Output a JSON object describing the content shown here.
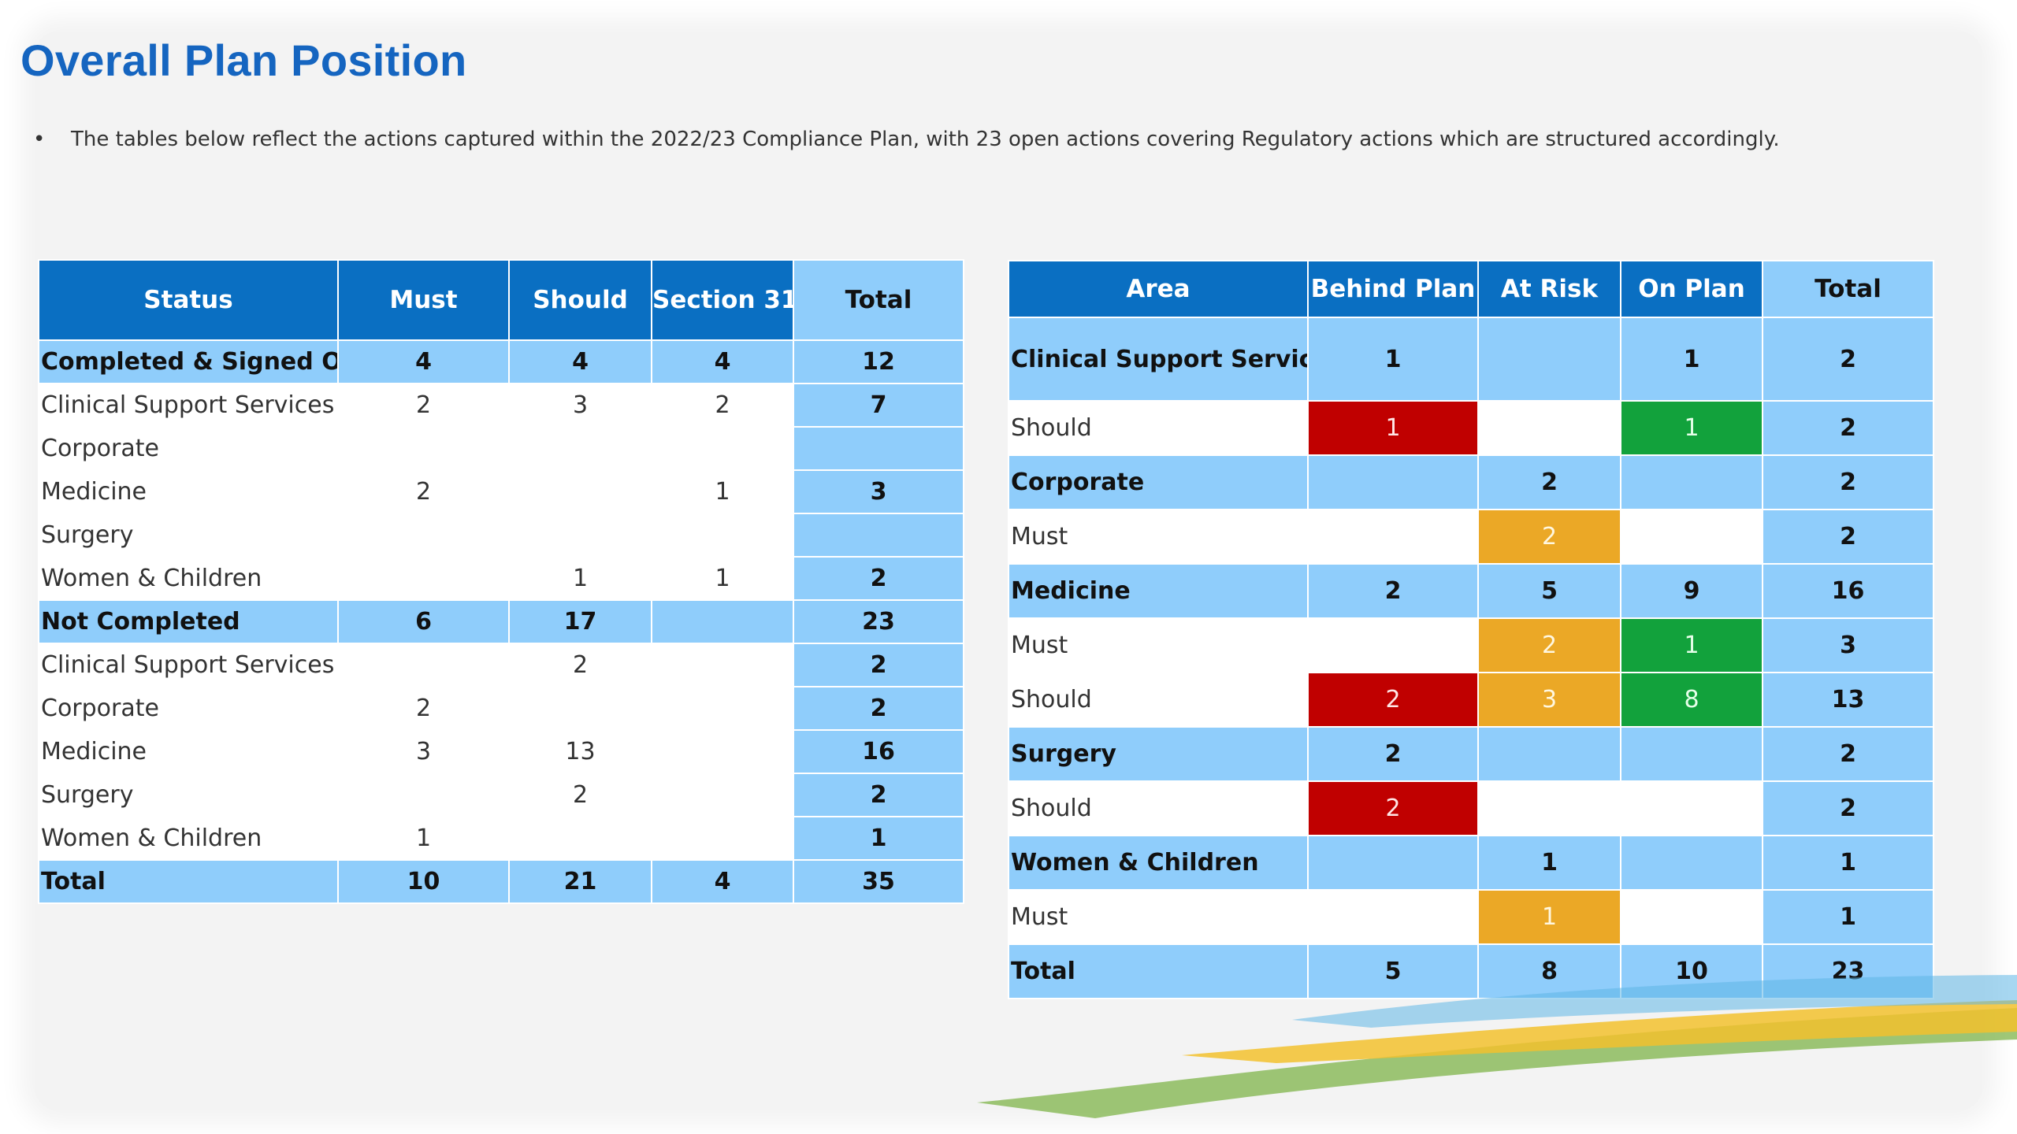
{
  "slide": {
    "title": "Overall Plan Position",
    "bullet": "The tables below reflect the actions captured within the 2022/23 Compliance Plan, with 23 open actions covering Regulatory actions which are structured accordingly."
  },
  "status_table": {
    "headers": [
      "Status",
      "Must",
      "Should",
      "Section 31",
      "Total"
    ],
    "rows": [
      {
        "type": "group",
        "cells": [
          "Completed & Signed Off",
          "4",
          "4",
          "4",
          "12"
        ]
      },
      {
        "type": "item",
        "cells": [
          "Clinical Support Services",
          "2",
          "3",
          "2",
          "7"
        ]
      },
      {
        "type": "item",
        "cells": [
          "Corporate",
          "",
          "",
          "",
          ""
        ]
      },
      {
        "type": "item",
        "cells": [
          "Medicine",
          "2",
          "",
          "1",
          "3"
        ]
      },
      {
        "type": "item",
        "cells": [
          "Surgery",
          "",
          "",
          "",
          ""
        ]
      },
      {
        "type": "item",
        "cells": [
          "Women & Children",
          "",
          "1",
          "1",
          "2"
        ]
      },
      {
        "type": "group",
        "cells": [
          "Not Completed",
          "6",
          "17",
          "",
          "23"
        ]
      },
      {
        "type": "item",
        "cells": [
          "Clinical Support Services",
          "",
          "2",
          "",
          "2"
        ]
      },
      {
        "type": "item",
        "cells": [
          "Corporate",
          "2",
          "",
          "",
          "2"
        ]
      },
      {
        "type": "item",
        "cells": [
          "Medicine",
          "3",
          "13",
          "",
          "16"
        ]
      },
      {
        "type": "item",
        "cells": [
          "Surgery",
          "",
          "2",
          "",
          "2"
        ]
      },
      {
        "type": "item",
        "cells": [
          "Women & Children",
          "1",
          "",
          "",
          "1"
        ]
      },
      {
        "type": "group",
        "cells": [
          "Total",
          "10",
          "21",
          "4",
          "35"
        ]
      }
    ]
  },
  "area_table": {
    "headers": [
      "Area",
      "Behind Plan",
      "At Risk",
      "On Plan",
      "Total"
    ],
    "rows": [
      {
        "type": "group",
        "cells": [
          "Clinical Support Services",
          "1",
          "",
          "1",
          "2"
        ]
      },
      {
        "type": "item",
        "cells": [
          "Should",
          "1",
          "",
          "1",
          "2"
        ]
      },
      {
        "type": "group",
        "cells": [
          "Corporate",
          "",
          "2",
          "",
          "2"
        ]
      },
      {
        "type": "item",
        "cells": [
          "Must",
          "",
          "2",
          "",
          "2"
        ]
      },
      {
        "type": "group",
        "cells": [
          "Medicine",
          "2",
          "5",
          "9",
          "16"
        ]
      },
      {
        "type": "item",
        "cells": [
          "Must",
          "",
          "2",
          "1",
          "3"
        ]
      },
      {
        "type": "item",
        "cells": [
          "Should",
          "2",
          "3",
          "8",
          "13"
        ]
      },
      {
        "type": "group",
        "cells": [
          "Surgery",
          "2",
          "",
          "",
          "2"
        ]
      },
      {
        "type": "item",
        "cells": [
          "Should",
          "2",
          "",
          "",
          "2"
        ]
      },
      {
        "type": "group",
        "cells": [
          "Women & Children",
          "",
          "1",
          "",
          "1"
        ]
      },
      {
        "type": "item",
        "cells": [
          "Must",
          "",
          "1",
          "",
          "1"
        ]
      },
      {
        "type": "group",
        "cells": [
          "Total",
          "5",
          "8",
          "10",
          "23"
        ]
      }
    ]
  },
  "colors": {
    "header_blue": "#0a6fc2",
    "light_blue": "#8fcdfb",
    "behind_plan": "#c00000",
    "at_risk": "#eba826",
    "on_plan": "#12a23c",
    "title": "#1565c0"
  }
}
